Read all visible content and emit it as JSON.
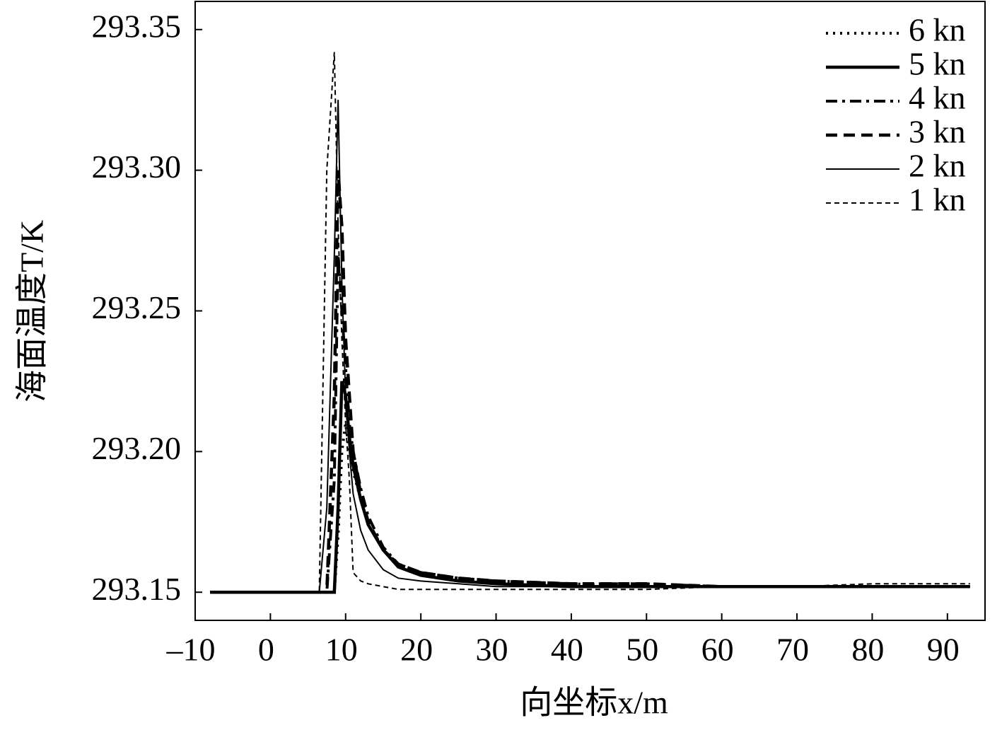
{
  "chart_data": {
    "type": "line",
    "xlabel": "向坐标x/m",
    "ylabel": "海面温度T/K",
    "x": [
      -8,
      6.5,
      7.5,
      8.5,
      9,
      9.5,
      10,
      10.5,
      11,
      12,
      13,
      15,
      17,
      20,
      25,
      30,
      40,
      50,
      60,
      70,
      80,
      93
    ],
    "series": [
      {
        "name": "6 kn",
        "color": "#000000",
        "dash": "dotted",
        "width": 4,
        "values": [
          293.15,
          293.15,
          293.15,
          293.15,
          293.17,
          293.2,
          293.21,
          293.2,
          293.193,
          293.183,
          293.174,
          293.165,
          293.16,
          293.157,
          293.155,
          293.154,
          293.153,
          293.152,
          293.152,
          293.152,
          293.152,
          293.152
        ]
      },
      {
        "name": "5 kn",
        "color": "#000000",
        "dash": "solid",
        "width": 4.5,
        "values": [
          293.15,
          293.15,
          293.15,
          293.15,
          293.18,
          293.225,
          293.22,
          293.205,
          293.195,
          293.183,
          293.174,
          293.165,
          293.159,
          293.156,
          293.154,
          293.153,
          293.152,
          293.152,
          293.152,
          293.152,
          293.152,
          293.152
        ]
      },
      {
        "name": "4 kn",
        "color": "#000000",
        "dash": "dashdot",
        "width": 4,
        "values": [
          293.15,
          293.15,
          293.15,
          293.19,
          293.27,
          293.25,
          293.23,
          293.21,
          293.2,
          293.187,
          293.177,
          293.166,
          293.16,
          293.157,
          293.155,
          293.154,
          293.153,
          293.153,
          293.152,
          293.152,
          293.152,
          293.152
        ]
      },
      {
        "name": "3 kn",
        "color": "#000000",
        "dash": "dashed",
        "width": 4.5,
        "values": [
          293.15,
          293.15,
          293.15,
          293.22,
          293.3,
          293.28,
          293.24,
          293.22,
          293.2,
          293.185,
          293.175,
          293.165,
          293.16,
          293.157,
          293.155,
          293.154,
          293.153,
          293.153,
          293.152,
          293.152,
          293.152,
          293.152
        ]
      },
      {
        "name": "2 kn",
        "color": "#000000",
        "dash": "solid",
        "width": 2,
        "values": [
          293.15,
          293.15,
          293.18,
          293.27,
          293.325,
          293.26,
          293.22,
          293.2,
          293.185,
          293.172,
          293.165,
          293.158,
          293.155,
          293.154,
          293.153,
          293.152,
          293.152,
          293.152,
          293.152,
          293.152,
          293.152,
          293.152
        ]
      },
      {
        "name": "1 kn",
        "color": "#000000",
        "dash": "finedashed",
        "width": 2,
        "values": [
          293.15,
          293.15,
          293.3,
          293.342,
          293.28,
          293.24,
          293.21,
          293.19,
          293.157,
          293.154,
          293.153,
          293.152,
          293.151,
          293.151,
          293.151,
          293.151,
          293.151,
          293.151,
          293.152,
          293.152,
          293.153,
          293.153
        ]
      }
    ],
    "xlim": [
      -10,
      95
    ],
    "ylim": [
      293.14,
      293.36
    ],
    "xticks": [
      {
        "value": -10,
        "label": "–10"
      },
      0,
      10,
      20,
      30,
      40,
      50,
      60,
      70,
      80,
      90
    ],
    "yticks": [
      293.15,
      {
        "value": 293.2,
        "label": "293.20"
      },
      293.25,
      {
        "value": 293.3,
        "label": "293.30"
      },
      293.35
    ],
    "legend": "upper right"
  }
}
